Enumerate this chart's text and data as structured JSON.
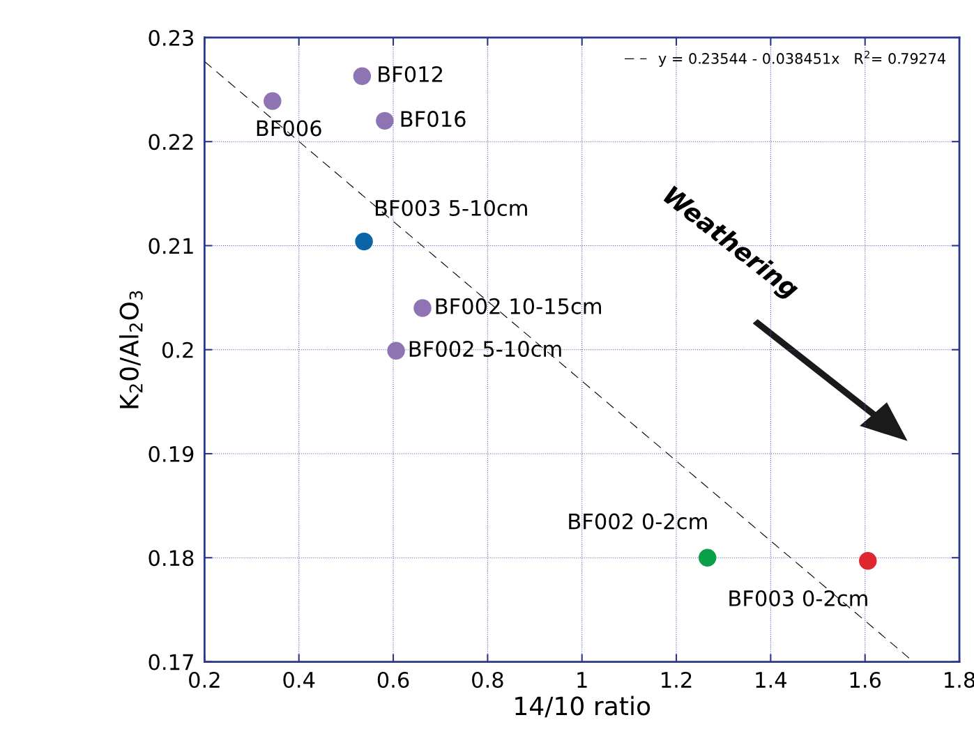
{
  "chart_data": {
    "type": "scatter",
    "xlabel": "14/10 ratio",
    "ylabel": "K$_{2}$0/Al$_{2}$O$_{3}$",
    "xlim": [
      0.2,
      1.8
    ],
    "xticks": [
      0.2,
      0.4,
      0.6,
      0.8,
      1,
      1.2,
      1.4,
      1.6,
      1.8
    ],
    "ylim": [
      0.17,
      0.23
    ],
    "yticks": [
      0.17,
      0.18,
      0.19,
      0.2,
      0.21,
      0.22,
      0.23
    ],
    "grid": true,
    "legend": "top right",
    "series": [
      {
        "marker": "circle",
        "x": [
          0.534,
          0.344,
          0.582,
          0.538,
          0.662,
          0.606,
          1.266,
          1.606
        ],
        "values": [
          0.2263,
          0.2239,
          0.222,
          0.2104,
          0.204,
          0.1999,
          0.18,
          0.1797
        ],
        "colors": [
          "#8f74b4",
          "#8f74b4",
          "#8f74b4",
          "#0a64a8",
          "#8f74b4",
          "#8f74b4",
          "#0aa04a",
          "#e0262e"
        ]
      },
      {
        "type": "line",
        "name": "y = 0.23544 - 0.038451x   R$^{2}$= 0.79274",
        "color": "#000000",
        "line_style": "dashed",
        "x": [
          0.2,
          1.7
        ],
        "values": [
          0.2277,
          0.1701
        ]
      }
    ],
    "annotations": [
      {
        "text": "BF012",
        "x": 0.534,
        "y": 0.2263
      },
      {
        "text": "BF006",
        "x": 0.344,
        "y": 0.2239
      },
      {
        "text": "BF016",
        "x": 0.582,
        "y": 0.222
      },
      {
        "text": "BF003 5-10cm",
        "x": 0.538,
        "y": 0.2104
      },
      {
        "text": "BF002 10-15cm",
        "x": 0.662,
        "y": 0.204
      },
      {
        "text": "BF002 5-10cm",
        "x": 0.606,
        "y": 0.1999
      },
      {
        "text": "BF002 0-2cm",
        "x": 1.266,
        "y": 0.18
      },
      {
        "text": "BF003 0-2cm",
        "x": 1.606,
        "y": 0.1797
      },
      "Weathering"
    ]
  }
}
